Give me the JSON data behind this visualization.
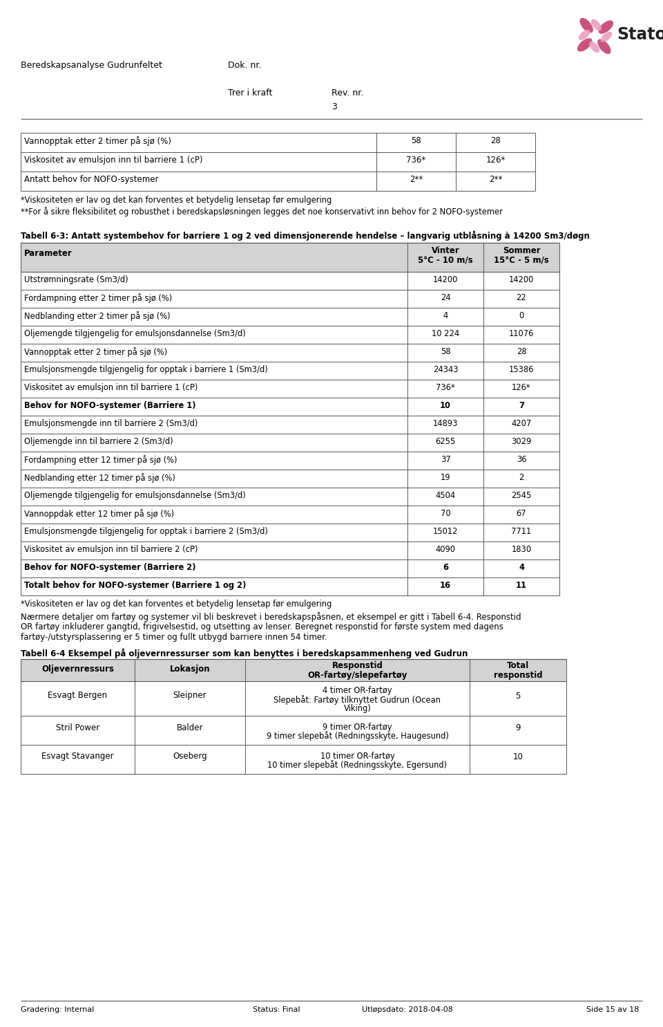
{
  "page_title_left": "Beredskapsanalyse Gudrunfeltet",
  "page_title_doc": "Dok. nr.",
  "page_title_tref": "Trer i kraft",
  "page_title_rev": "Rev. nr.",
  "page_title_rev_val": "3",
  "top_table_rows": [
    [
      "Vannopptak etter 2 timer på sjø (%)",
      "58",
      "28"
    ],
    [
      "Viskositet av emulsjon inn til barriere 1 (cP)",
      "736*",
      "126*"
    ],
    [
      "Antatt behov for NOFO-systemer",
      "2**",
      "2**"
    ]
  ],
  "footnote1": "*Viskositeten er lav og det kan forventes et betydelig lensetap før emulgering",
  "footnote2": "**For å sikre fleksibilitet og robusthet i beredskapsløsningen legges det noe konservativt inn behov for 2 NOFO-systemer",
  "table2_title": "Tabell 6-3: Antatt systembehov for barriere 1 og 2 ved dimensjonerende hendelse – langvarig utblåsning à 14200 Sm3/døgn",
  "table2_rows": [
    [
      "Utstrømningsrate (Sm3/d)",
      "14200",
      "14200",
      false
    ],
    [
      "Fordampning etter 2 timer på sjø (%)",
      "24",
      "22",
      false
    ],
    [
      "Nedblanding etter 2 timer på sjø (%)",
      "4",
      "0",
      false
    ],
    [
      "Oljemengde tilgjengelig for emulsjonsdannelse (Sm3/d)",
      "10 224",
      "11076",
      false
    ],
    [
      "Vannopptak etter 2 timer på sjø (%)",
      "58",
      "28",
      false
    ],
    [
      "Emulsjonsmengde tilgjengelig for opptak i barriere 1 (Sm3/d)",
      "24343",
      "15386",
      false
    ],
    [
      "Viskositet av emulsjon inn til barriere 1 (cP)",
      "736*",
      "126*",
      false
    ],
    [
      "Behov for NOFO-systemer (Barriere 1)",
      "10",
      "7",
      true
    ],
    [
      "Emulsjonsmengde inn til barriere 2 (Sm3/d)",
      "14893",
      "4207",
      false
    ],
    [
      "Oljemengde inn til barriere 2 (Sm3/d)",
      "6255",
      "3029",
      false
    ],
    [
      "Fordampning etter 12 timer på sjø (%)",
      "37",
      "36",
      false
    ],
    [
      "Nedblanding etter 12 timer på sjø (%)",
      "19",
      "2",
      false
    ],
    [
      "Oljemengde tilgjengelig for emulsjonsdannelse (Sm3/d)",
      "4504",
      "2545",
      false
    ],
    [
      "Vannoppdak etter 12 timer på sjø (%)",
      "70",
      "67",
      false
    ],
    [
      "Emulsjonsmengde tilgjengelig for opptak i barriere 2 (Sm3/d)",
      "15012",
      "7711",
      false
    ],
    [
      "Viskositet av emulsjon inn til barriere 2 (cP)",
      "4090",
      "1830",
      false
    ],
    [
      "Behov for NOFO-systemer (Barriere 2)",
      "6",
      "4",
      true
    ],
    [
      "Totalt behov for NOFO-systemer (Barriere 1 og 2)",
      "16",
      "11",
      true
    ]
  ],
  "table2_footnote": "*Viskositeten er lav og det kan forventes et betydelig lensetap før emulgering",
  "paragraph_lines": [
    "Nærmere detaljer om fartøy og systemer vil bli beskrevet i beredskapspåsnen, et eksempel er gitt i Tabell 6-4. Responstid",
    "OR fartøy inkluderer gangtid, frigivelsestid, og utsetting av lenser. Beregnet responstid for første system med dagens",
    "fartøy-/utstyrsplassering er 5 timer og fullt utbygd barriere innen 54 timer."
  ],
  "table3_title": "Tabell 6-4 Eksempel på oljevernressurser som kan benyttes i beredskapsammenheng ved Gudrun",
  "table3_headers": [
    "Oljevernressurs",
    "Lokasjon",
    "Responstid\nOR-fartøy/slepefartøy",
    "Total responstid"
  ],
  "table3_rows": [
    [
      "Esvagt Bergen",
      "Sleipner",
      "4 timer OR-fartøy\nSlepebåt: Fartøy tilknyttet Gudrun (Ocean\nViking)",
      "5"
    ],
    [
      "Stril Power",
      "Balder",
      "9 timer OR-fartøy\n9 timer slepebåt (Redningsskyte, Haugesund)",
      "9"
    ],
    [
      "Esvagt Stavanger",
      "Oseberg",
      "10 timer OR-fartøy\n10 timer slepebåt (Redningsskyte, Egersund)",
      "10"
    ]
  ],
  "footer_left": "Gradering: Internal",
  "footer_center": "Status: Final",
  "footer_date": "Utløpsdato: 2018-04-08",
  "footer_right": "Side 15 av 18"
}
